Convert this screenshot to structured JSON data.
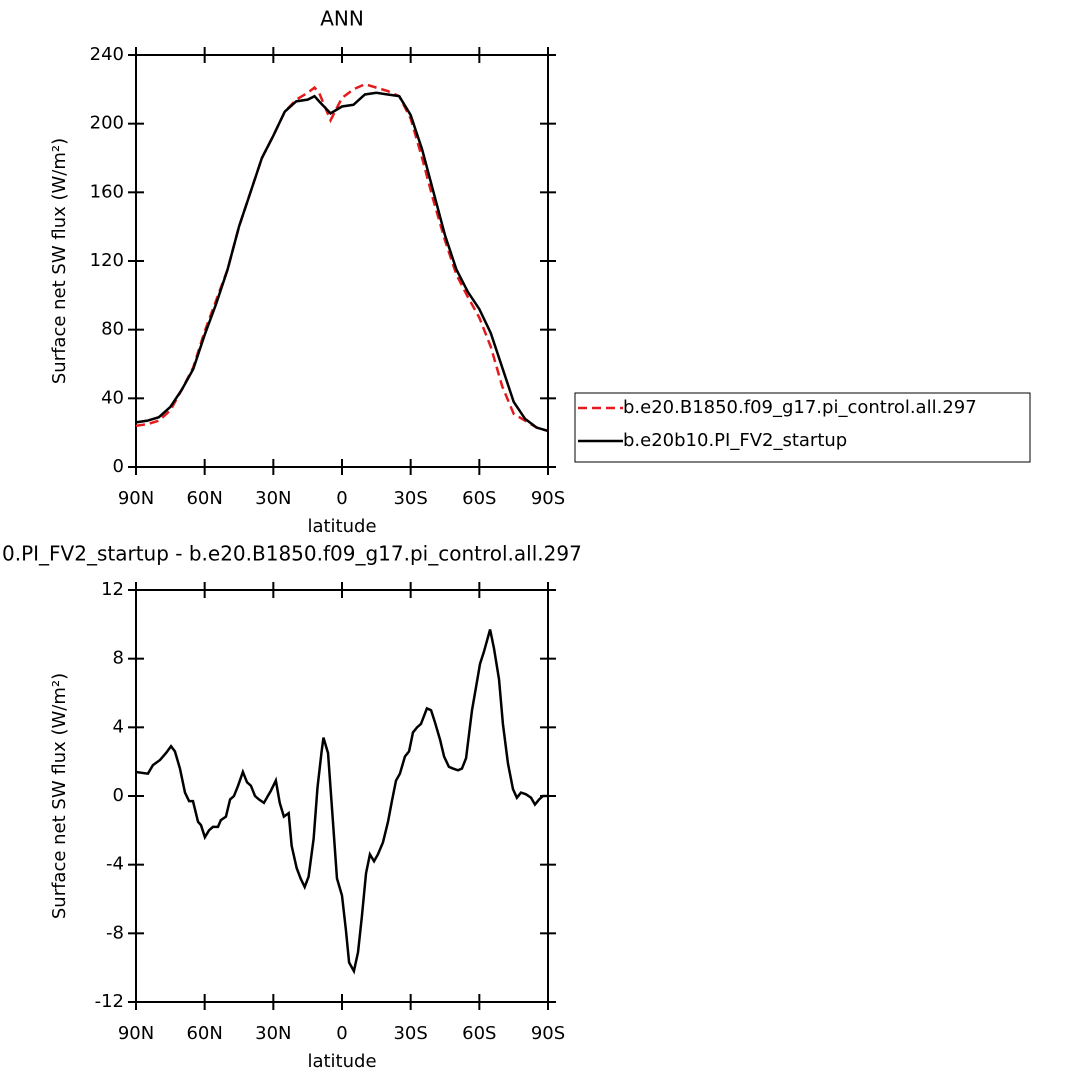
{
  "chart_data": [
    {
      "type": "line",
      "title": "ANN",
      "x_label": "latitude",
      "y_label": "Surface net SW flux (W/m²)",
      "x": [
        90,
        85,
        80,
        75,
        70,
        65,
        60,
        55,
        50,
        45,
        40,
        35,
        30,
        25,
        20,
        15,
        12,
        10,
        5,
        0,
        -5,
        -10,
        -15,
        -20,
        -25,
        -30,
        -35,
        -40,
        -45,
        -50,
        -55,
        -60,
        -65,
        -70,
        -75,
        -80,
        -85,
        -90
      ],
      "series": [
        {
          "name": "b.e20.B1850.f09_g17.pi_control.all.297",
          "color": "#e41a1c",
          "line_style": "dashed",
          "values": [
            24,
            25,
            27,
            33,
            45,
            58,
            79,
            97,
            115,
            140,
            160,
            180,
            193,
            207,
            214,
            218,
            221,
            218,
            202,
            215,
            220,
            223,
            221,
            219,
            216,
            203,
            180,
            155,
            132,
            112,
            99,
            87,
            70,
            47,
            31,
            27,
            23,
            21
          ]
        },
        {
          "name": "b.e20b10.PI_FV2_startup",
          "color": "#000000",
          "line_style": "solid",
          "values": [
            26,
            27,
            29,
            35,
            45,
            57,
            77,
            95,
            115,
            140,
            160,
            180,
            193,
            207,
            213,
            214,
            216,
            213,
            206,
            210,
            211,
            217,
            218,
            217,
            216,
            205,
            185,
            160,
            135,
            115,
            102,
            92,
            78,
            58,
            38,
            28,
            23,
            21
          ]
        }
      ],
      "xlim": [
        90,
        -90
      ],
      "xticks": [
        {
          "value": 90,
          "label": "90N"
        },
        {
          "value": 60,
          "label": "60N"
        },
        {
          "value": 30,
          "label": "30N"
        },
        0,
        {
          "value": -30,
          "label": "30S"
        },
        {
          "value": -60,
          "label": "60S"
        },
        {
          "value": -90,
          "label": "90S"
        }
      ],
      "ylim": [
        0,
        240
      ],
      "yticks": [
        0,
        40,
        80,
        120,
        160,
        200,
        240
      ],
      "legend": "right",
      "grid": false
    },
    {
      "type": "line",
      "title": "0.PI_FV2_startup - b.e20.B1850.f09_g17.pi_control.all.297",
      "x_label": "latitude",
      "y_label": "Surface net SW flux (W/m²)",
      "x": [
        90,
        84.8,
        82.6,
        79.5,
        76.9,
        74.7,
        73.0,
        70.8,
        68.6,
        66.8,
        65.1,
        62.9,
        61.6,
        59.9,
        58.1,
        56.4,
        54.2,
        52.9,
        50.7,
        48.9,
        47.2,
        45.4,
        43.3,
        41.5,
        39.8,
        38.0,
        36.3,
        34.1,
        32.4,
        31.1,
        28.9,
        27.2,
        25.4,
        23.3,
        22.0,
        19.8,
        18.1,
        16.3,
        14.6,
        12.4,
        10.7,
        8.9,
        8.1,
        6.1,
        3.9,
        2.2,
        0,
        -1.7,
        -3.1,
        -5.2,
        -7.0,
        -8.7,
        -10.5,
        -12.2,
        -14.0,
        -15.7,
        -17.9,
        -20.1,
        -21.8,
        -23.6,
        -25.3,
        -27.5,
        -29.3,
        -31.0,
        -32.8,
        -34.5,
        -37.1,
        -38.9,
        -40.6,
        -42.8,
        -44.6,
        -46.7,
        -48.5,
        -50.7,
        -52.4,
        -54.2,
        -56.8,
        -58.5,
        -60.3,
        -62.0,
        -64.7,
        -66.4,
        -68.6,
        -70.3,
        -72.5,
        -74.7,
        -76.4,
        -78.2,
        -80.4,
        -82.6,
        -84.3,
        -86.1,
        -87.8,
        -90
      ],
      "series": [
        {
          "color": "#000000",
          "line_style": "solid",
          "values": [
            1.4,
            1.3,
            1.8,
            2.1,
            2.5,
            2.9,
            2.6,
            1.6,
            0.2,
            -0.3,
            -0.3,
            -1.5,
            -1.7,
            -2.4,
            -2.0,
            -1.8,
            -1.8,
            -1.4,
            -1.2,
            -0.2,
            0.0,
            0.6,
            1.4,
            0.8,
            0.6,
            0.0,
            -0.2,
            -0.4,
            0,
            0.3,
            0.9,
            -0.4,
            -1.2,
            -1.0,
            -2.9,
            -4.2,
            -4.8,
            -5.3,
            -4.7,
            -2.5,
            0.5,
            2.6,
            3.4,
            2.5,
            -1.6,
            -4.8,
            -5.8,
            -7.8,
            -9.7,
            -10.2,
            -9.1,
            -7,
            -4.5,
            -3.4,
            -3.8,
            -3.4,
            -2.7,
            -1.5,
            -0.3,
            0.9,
            1.3,
            2.3,
            2.6,
            3.7,
            4.0,
            4.2,
            5.1,
            5.0,
            4.3,
            3.3,
            2.3,
            1.7,
            1.6,
            1.5,
            1.6,
            2.2,
            5.0,
            6.3,
            7.7,
            8.4,
            9.7,
            8.6,
            6.8,
            4.2,
            1.9,
            0.4,
            -0.1,
            0.2,
            0.1,
            -0.1,
            -0.5,
            -0.2,
            0,
            0
          ]
        }
      ],
      "xlim": [
        90,
        -90
      ],
      "xticks": [
        {
          "value": 90,
          "label": "90N"
        },
        {
          "value": 60,
          "label": "60N"
        },
        {
          "value": 30,
          "label": "30N"
        },
        0,
        {
          "value": -30,
          "label": "30S"
        },
        {
          "value": -60,
          "label": "60S"
        },
        {
          "value": -90,
          "label": "90S"
        }
      ],
      "ylim": [
        -12,
        12
      ],
      "yticks": [
        -12,
        -8,
        -4,
        0,
        4,
        8,
        12
      ],
      "grid": false
    }
  ]
}
